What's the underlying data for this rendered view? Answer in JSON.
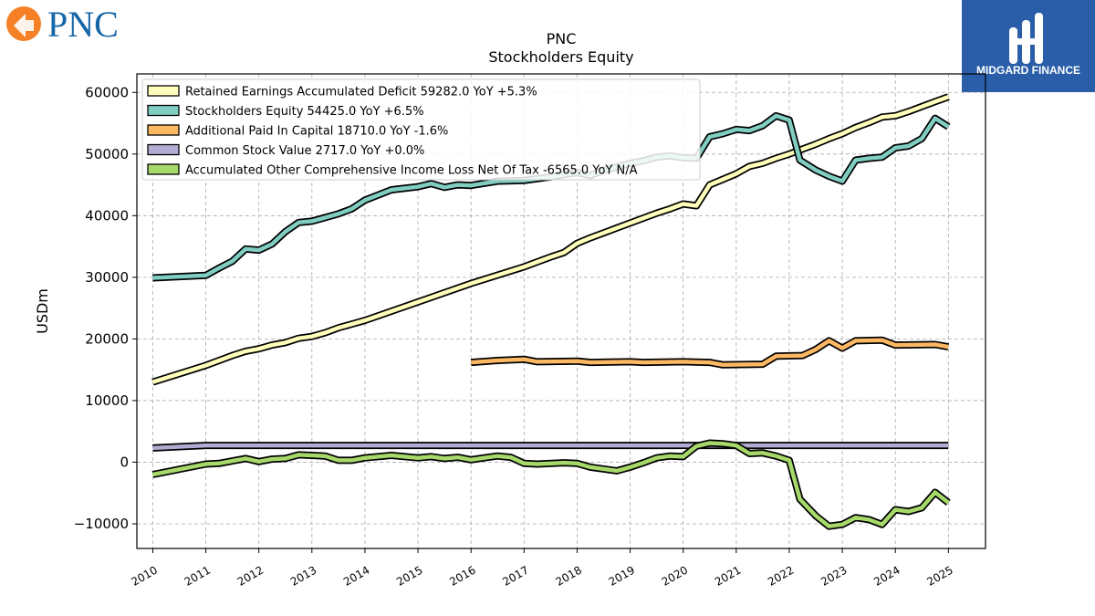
{
  "brand_left": {
    "name": "PNC",
    "accent": "#f58025",
    "text_color": "#1566a8"
  },
  "brand_right": {
    "name": "MIDGARD FINANCE",
    "bg": "#2a5ea8"
  },
  "chart_data": {
    "type": "line",
    "title": "PNC",
    "subtitle": "Stockholders  Equity",
    "ylabel": "USDm",
    "xlabel": "",
    "ylim": [
      -14000,
      63000
    ],
    "xlim": [
      2009.7,
      2025.7
    ],
    "yticks": [
      -10000,
      0,
      10000,
      20000,
      30000,
      40000,
      50000,
      60000
    ],
    "ytick_labels": [
      "−10000",
      "0",
      "10000",
      "20000",
      "30000",
      "40000",
      "50000",
      "60000"
    ],
    "xticks": [
      2010,
      2011,
      2012,
      2013,
      2014,
      2015,
      2016,
      2017,
      2018,
      2019,
      2020,
      2021,
      2022,
      2023,
      2024,
      2025
    ],
    "xtick_labels": [
      "2010",
      "2011",
      "2012",
      "2013",
      "2014",
      "2015",
      "2016",
      "2017",
      "2018",
      "2019",
      "2020",
      "2021",
      "2022",
      "2023",
      "2024",
      "2025"
    ],
    "grid": true,
    "legend_position": "top-left",
    "series": [
      {
        "name": "Retained Earnings Accumulated Deficit",
        "legend_label": "Retained Earnings Accumulated Deficit  59282.0 YoY +5.3%",
        "color": "#ffffbb",
        "points": [
          [
            2010,
            13000
          ],
          [
            2011,
            15700
          ],
          [
            2011.25,
            16500
          ],
          [
            2011.5,
            17300
          ],
          [
            2011.75,
            18000
          ],
          [
            2012,
            18400
          ],
          [
            2012.25,
            19000
          ],
          [
            2012.5,
            19400
          ],
          [
            2012.75,
            20100
          ],
          [
            2013,
            20400
          ],
          [
            2013.25,
            21000
          ],
          [
            2013.5,
            21800
          ],
          [
            2013.75,
            22400
          ],
          [
            2014,
            23000
          ],
          [
            2015,
            26000
          ],
          [
            2016,
            29000
          ],
          [
            2017,
            31700
          ],
          [
            2017.25,
            32500
          ],
          [
            2017.5,
            33300
          ],
          [
            2017.75,
            34000
          ],
          [
            2018,
            35500
          ],
          [
            2018.25,
            36400
          ],
          [
            2018.5,
            37200
          ],
          [
            2018.75,
            38000
          ],
          [
            2019,
            38800
          ],
          [
            2019.25,
            39600
          ],
          [
            2019.5,
            40400
          ],
          [
            2019.75,
            41100
          ],
          [
            2020,
            41900
          ],
          [
            2020.25,
            41600
          ],
          [
            2020.5,
            45000
          ],
          [
            2020.75,
            45900
          ],
          [
            2021,
            46800
          ],
          [
            2021.25,
            48000
          ],
          [
            2021.5,
            48500
          ],
          [
            2021.75,
            49300
          ],
          [
            2022,
            50000
          ],
          [
            2022.25,
            50800
          ],
          [
            2022.5,
            51600
          ],
          [
            2022.75,
            52500
          ],
          [
            2023,
            53300
          ],
          [
            2023.25,
            54300
          ],
          [
            2023.5,
            55100
          ],
          [
            2023.75,
            56000
          ],
          [
            2024,
            56200
          ],
          [
            2024.25,
            56900
          ],
          [
            2024.5,
            57700
          ],
          [
            2024.75,
            58500
          ],
          [
            2025,
            59282
          ]
        ]
      },
      {
        "name": "Stockholders Equity",
        "legend_label": "Stockholders Equity  54425.0 YoY +6.5%",
        "color": "#80cdc1",
        "points": [
          [
            2010,
            29900
          ],
          [
            2011,
            30300
          ],
          [
            2011.25,
            31500
          ],
          [
            2011.5,
            32600
          ],
          [
            2011.75,
            34600
          ],
          [
            2012,
            34400
          ],
          [
            2012.25,
            35400
          ],
          [
            2012.5,
            37400
          ],
          [
            2012.75,
            38900
          ],
          [
            2013,
            39100
          ],
          [
            2013.25,
            39700
          ],
          [
            2013.5,
            40300
          ],
          [
            2013.75,
            41100
          ],
          [
            2014,
            42500
          ],
          [
            2014.5,
            44200
          ],
          [
            2015,
            44700
          ],
          [
            2015.25,
            45200
          ],
          [
            2015.5,
            44600
          ],
          [
            2015.75,
            45000
          ],
          [
            2016,
            44900
          ],
          [
            2016.5,
            45600
          ],
          [
            2017,
            45700
          ],
          [
            2017.5,
            46300
          ],
          [
            2018,
            47000
          ],
          [
            2018.25,
            46500
          ],
          [
            2018.5,
            47400
          ],
          [
            2018.75,
            47900
          ],
          [
            2019,
            48500
          ],
          [
            2019.25,
            48900
          ],
          [
            2019.5,
            49500
          ],
          [
            2019.75,
            49700
          ],
          [
            2020,
            49400
          ],
          [
            2020.25,
            49300
          ],
          [
            2020.5,
            52800
          ],
          [
            2020.75,
            53300
          ],
          [
            2021,
            54000
          ],
          [
            2021.25,
            53800
          ],
          [
            2021.5,
            54600
          ],
          [
            2021.75,
            56200
          ],
          [
            2022,
            55500
          ],
          [
            2022.2,
            49000
          ],
          [
            2022.5,
            47400
          ],
          [
            2022.75,
            46400
          ],
          [
            2023,
            45600
          ],
          [
            2023.25,
            49000
          ],
          [
            2023.5,
            49300
          ],
          [
            2023.75,
            49500
          ],
          [
            2024,
            51000
          ],
          [
            2024.25,
            51300
          ],
          [
            2024.5,
            52500
          ],
          [
            2024.75,
            55800
          ],
          [
            2025,
            54425
          ]
        ]
      },
      {
        "name": "Additional Paid In Capital",
        "legend_label": "Additional Paid In Capital  18710.0 YoY -1.6%",
        "color": "#fdb863",
        "points": [
          [
            2016,
            16200
          ],
          [
            2016.5,
            16500
          ],
          [
            2017,
            16700
          ],
          [
            2017.25,
            16300
          ],
          [
            2018,
            16400
          ],
          [
            2018.25,
            16200
          ],
          [
            2019,
            16300
          ],
          [
            2019.25,
            16200
          ],
          [
            2020,
            16300
          ],
          [
            2020.5,
            16200
          ],
          [
            2020.75,
            15800
          ],
          [
            2021.5,
            15900
          ],
          [
            2021.75,
            17200
          ],
          [
            2022.25,
            17300
          ],
          [
            2022.5,
            18300
          ],
          [
            2022.75,
            19700
          ],
          [
            2023,
            18500
          ],
          [
            2023.25,
            19700
          ],
          [
            2023.75,
            19800
          ],
          [
            2024,
            19000
          ],
          [
            2024.75,
            19100
          ],
          [
            2025,
            18710
          ]
        ]
      },
      {
        "name": "Common Stock Value",
        "legend_label": "Common Stock Value  2717.0 YoY +0.0%",
        "color": "#b2abd2",
        "points": [
          [
            2010,
            2300
          ],
          [
            2011,
            2717
          ],
          [
            2025,
            2717
          ]
        ]
      },
      {
        "name": "Accumulated Other Comprehensive Income Loss Net Of Tax",
        "legend_label": "Accumulated Other Comprehensive Income Loss Net Of Tax  -6565.0 YoY N/A",
        "color": "#a6d96a",
        "points": [
          [
            2010,
            -2000
          ],
          [
            2011,
            -300
          ],
          [
            2011.25,
            -200
          ],
          [
            2011.75,
            600
          ],
          [
            2012,
            100
          ],
          [
            2012.25,
            500
          ],
          [
            2012.5,
            600
          ],
          [
            2012.75,
            1200
          ],
          [
            2013,
            1100
          ],
          [
            2013.25,
            1000
          ],
          [
            2013.5,
            300
          ],
          [
            2013.75,
            300
          ],
          [
            2014,
            700
          ],
          [
            2014.5,
            1100
          ],
          [
            2015,
            700
          ],
          [
            2015.25,
            900
          ],
          [
            2015.5,
            600
          ],
          [
            2015.75,
            800
          ],
          [
            2016,
            400
          ],
          [
            2016.25,
            700
          ],
          [
            2016.5,
            1000
          ],
          [
            2016.75,
            800
          ],
          [
            2017,
            -200
          ],
          [
            2017.25,
            -300
          ],
          [
            2017.75,
            -100
          ],
          [
            2018,
            -200
          ],
          [
            2018.25,
            -800
          ],
          [
            2018.5,
            -1100
          ],
          [
            2018.75,
            -1400
          ],
          [
            2019,
            -800
          ],
          [
            2019.25,
            -100
          ],
          [
            2019.5,
            700
          ],
          [
            2019.75,
            1000
          ],
          [
            2020,
            900
          ],
          [
            2020.25,
            2600
          ],
          [
            2020.5,
            3100
          ],
          [
            2020.75,
            3000
          ],
          [
            2021,
            2700
          ],
          [
            2021.25,
            1400
          ],
          [
            2021.5,
            1500
          ],
          [
            2021.75,
            1000
          ],
          [
            2022,
            300
          ],
          [
            2022.2,
            -6000
          ],
          [
            2022.5,
            -8700
          ],
          [
            2022.75,
            -10400
          ],
          [
            2023,
            -10100
          ],
          [
            2023.25,
            -9000
          ],
          [
            2023.5,
            -9300
          ],
          [
            2023.75,
            -10100
          ],
          [
            2024,
            -7700
          ],
          [
            2024.25,
            -8000
          ],
          [
            2024.5,
            -7400
          ],
          [
            2024.75,
            -4900
          ],
          [
            2025,
            -6565
          ]
        ]
      }
    ]
  }
}
